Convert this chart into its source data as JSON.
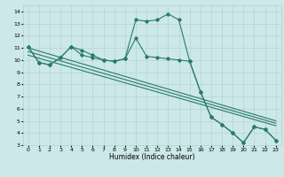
{
  "title": "",
  "xlabel": "Humidex (Indice chaleur)",
  "ylabel": "",
  "bg_color": "#cce8e8",
  "grid_color": "#b0d0d0",
  "line_color": "#2a7a6a",
  "xlim": [
    -0.5,
    23.5
  ],
  "ylim": [
    3,
    14.5
  ],
  "yticks": [
    3,
    4,
    5,
    6,
    7,
    8,
    9,
    10,
    11,
    12,
    13,
    14
  ],
  "xticks": [
    0,
    1,
    2,
    3,
    4,
    5,
    6,
    7,
    8,
    9,
    10,
    11,
    12,
    13,
    14,
    15,
    16,
    17,
    18,
    19,
    20,
    21,
    22,
    23
  ],
  "line1_x": [
    0,
    1,
    2,
    3,
    4,
    5,
    6,
    7,
    8,
    9,
    10,
    11,
    12,
    13,
    14,
    15,
    16,
    17,
    18,
    19,
    20,
    21,
    22,
    23
  ],
  "line1_y": [
    11.1,
    9.8,
    9.6,
    10.2,
    11.1,
    10.8,
    10.4,
    10.0,
    9.9,
    10.1,
    13.3,
    13.2,
    13.3,
    13.8,
    13.3,
    9.9,
    7.4,
    5.3,
    4.7,
    4.0,
    3.2,
    4.5,
    4.3,
    3.4
  ],
  "line2_x": [
    0,
    1,
    2,
    3,
    4,
    5,
    6,
    7,
    8,
    9,
    10,
    11,
    12,
    13,
    14,
    15,
    16,
    17,
    18,
    19,
    20,
    21,
    22,
    23
  ],
  "line2_y": [
    11.1,
    9.8,
    9.6,
    10.2,
    11.1,
    10.4,
    10.2,
    10.0,
    9.9,
    10.1,
    11.8,
    10.3,
    10.2,
    10.1,
    10.0,
    9.9,
    7.4,
    5.3,
    4.7,
    4.0,
    3.2,
    4.5,
    4.3,
    3.4
  ],
  "line3_x": [
    0,
    23
  ],
  "line3_y": [
    11.0,
    5.0
  ],
  "line4_x": [
    0,
    23
  ],
  "line4_y": [
    10.7,
    4.8
  ],
  "line5_x": [
    0,
    23
  ],
  "line5_y": [
    10.4,
    4.6
  ],
  "marker": "D",
  "markersize": 1.8,
  "linewidth": 0.8,
  "tick_fontsize": 4.5,
  "label_fontsize": 5.5
}
